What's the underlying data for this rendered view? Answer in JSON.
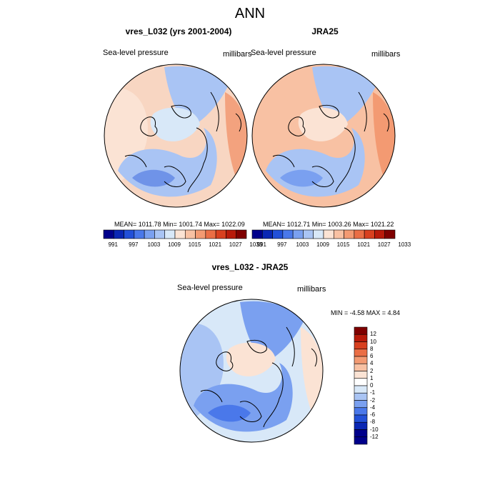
{
  "title": "ANN",
  "panels": [
    {
      "title": "vres_L032 (yrs 2001-2004)",
      "left_label": "Sea-level pressure",
      "right_label": "millibars",
      "stats": "MEAN= 1011.78  Min= 1001.74  Max= 1022.09"
    },
    {
      "title": "JRA25",
      "left_label": "Sea-level pressure",
      "right_label": "millibars",
      "stats": "MEAN= 1012.71  Min= 1003.26  Max= 1021.22"
    }
  ],
  "abs_colorbar": {
    "colors": [
      "#00008b",
      "#0a27b4",
      "#2250d8",
      "#4a78ea",
      "#7aa0f0",
      "#a9c4f4",
      "#d8e8f8",
      "#fbe3d4",
      "#f8c1a3",
      "#f39a72",
      "#ea6e45",
      "#d8401f",
      "#b81a0a",
      "#7f0000"
    ],
    "labels": [
      "991",
      "997",
      "1003",
      "1009",
      "1015",
      "1021",
      "1027",
      "1033"
    ]
  },
  "diff": {
    "title": "vres_L032 - JRA25",
    "left_label": "Sea-level pressure",
    "right_label": "millibars",
    "stats": "MIN =  -4.58 MAX =   4.84",
    "colorbar": {
      "colors": [
        "#7f0000",
        "#b81a0a",
        "#d8401f",
        "#ea6e45",
        "#f39a72",
        "#f8c1a3",
        "#fbe3d4",
        "#ffffff",
        "#d8e8f8",
        "#a9c4f4",
        "#7aa0f0",
        "#4a78ea",
        "#2250d8",
        "#0a27b4",
        "#00008b"
      ],
      "labels": [
        "12",
        "10",
        "8",
        "6",
        "4",
        "2",
        "1",
        "0",
        "-1",
        "-2",
        "-4",
        "-6",
        "-8",
        "-10",
        "-12"
      ]
    }
  },
  "map_colors": {
    "model": {
      "outer": "#f8d6c2",
      "west": "#fbe3d4",
      "east": "#f3a27e",
      "low": "#a9c4f4",
      "deeplow": "#6f93e8",
      "arctic": "#d8e8f8"
    },
    "obs": {
      "outer": "#f8c1a3",
      "west": "#f8c1a3",
      "east": "#f39a72",
      "low": "#a9c4f4",
      "deeplow": "#7aa0f0",
      "arctic": "#fbe3d4"
    },
    "diff": {
      "outer": "#d8e8f8",
      "west": "#a9c4f4",
      "east": "#fbe3d4",
      "low": "#7aa0f0",
      "deeplow": "#4a78ea",
      "arctic": "#fbe3d4"
    }
  }
}
